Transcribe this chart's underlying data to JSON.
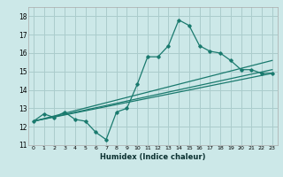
{
  "xlabel": "Humidex (Indice chaleur)",
  "ylabel": "",
  "bg_color": "#cce8e8",
  "grid_color": "#aacccc",
  "line_color": "#1a7a6e",
  "xlim": [
    -0.5,
    23.5
  ],
  "ylim": [
    11,
    18.5
  ],
  "yticks": [
    11,
    12,
    13,
    14,
    15,
    16,
    17,
    18
  ],
  "xticks": [
    0,
    1,
    2,
    3,
    4,
    5,
    6,
    7,
    8,
    9,
    10,
    11,
    12,
    13,
    14,
    15,
    16,
    17,
    18,
    19,
    20,
    21,
    22,
    23
  ],
  "series1_x": [
    0,
    1,
    2,
    3,
    4,
    5,
    6,
    7,
    8,
    9,
    10,
    11,
    12,
    13,
    14,
    15,
    16,
    17,
    18,
    19,
    20,
    21,
    22,
    23
  ],
  "series1_y": [
    12.3,
    12.7,
    12.5,
    12.8,
    12.4,
    12.3,
    11.7,
    11.3,
    12.8,
    13.0,
    14.3,
    15.8,
    15.8,
    16.4,
    17.8,
    17.5,
    16.4,
    16.1,
    16.0,
    15.6,
    15.1,
    15.1,
    14.9,
    14.9
  ],
  "line2_x": [
    0,
    23
  ],
  "line2_y": [
    12.3,
    15.6
  ],
  "line3_x": [
    0,
    23
  ],
  "line3_y": [
    12.3,
    15.1
  ],
  "line4_x": [
    0,
    23
  ],
  "line4_y": [
    12.3,
    14.9
  ]
}
